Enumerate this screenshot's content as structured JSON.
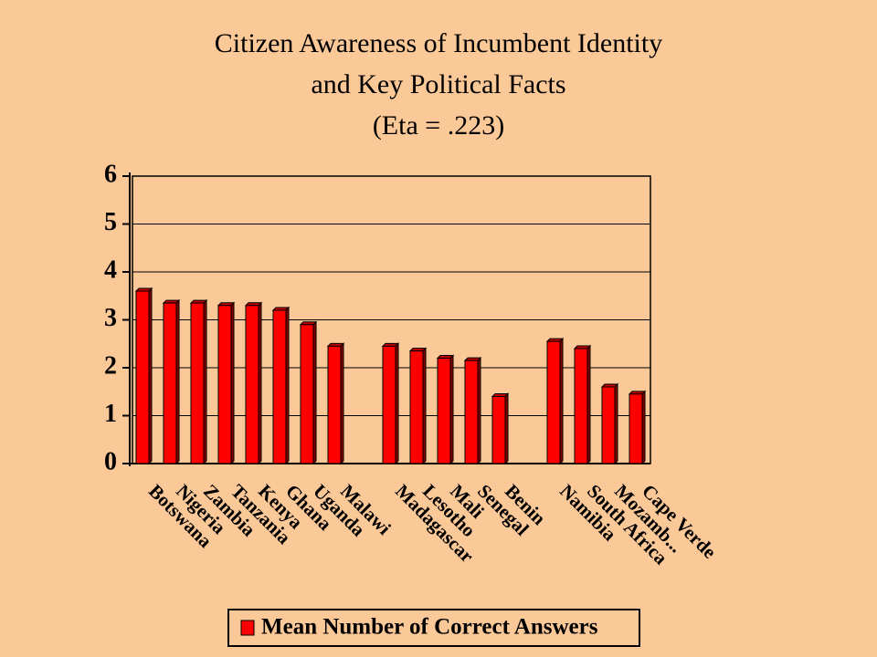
{
  "chart_data": {
    "type": "bar",
    "title": [
      "Citizen Awareness of Incumbent Identity",
      "and Key Political Facts"
    ],
    "subtitle": "(Eta = .223)",
    "categories": [
      "Botswana",
      "Nigeria",
      "Zambia",
      "Tanzania",
      "Kenya",
      "Ghana",
      "Uganda",
      "Malawi",
      null,
      "Madagascar",
      "Lesotho",
      "Mali",
      "Senegal",
      "Benin",
      null,
      "Namibia",
      "South Africa",
      "Mozamb...",
      "Cape Verde"
    ],
    "series": [
      {
        "name": "Mean Number of Correct Answers",
        "color": "#ff0000",
        "values": [
          3.6,
          3.35,
          3.35,
          3.3,
          3.3,
          3.2,
          2.9,
          2.45,
          null,
          2.45,
          2.35,
          2.2,
          2.15,
          1.4,
          null,
          2.55,
          2.4,
          1.6,
          1.45
        ]
      }
    ],
    "ylim": [
      0,
      6
    ],
    "yticks": [
      0,
      1,
      2,
      3,
      4,
      5,
      6
    ],
    "grid": true,
    "legend": "bottom"
  }
}
